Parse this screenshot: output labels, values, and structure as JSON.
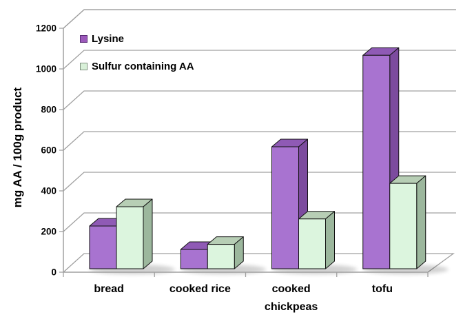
{
  "chart_data": {
    "type": "bar",
    "variant": "3d-clustered",
    "title": "",
    "xlabel": "",
    "ylabel": "mg AA / 100g product",
    "categories": [
      "bread",
      "cooked rice",
      "cooked chickpeas",
      "tofu"
    ],
    "series": [
      {
        "name": "Lysine",
        "values": [
          210,
          95,
          600,
          1050
        ],
        "color_front": "#a873d0",
        "color_top": "#8f5ab5",
        "color_side": "#7c4b9e",
        "legend_swatch": "#9c59bb"
      },
      {
        "name": "Sulfur containing AA",
        "values": [
          305,
          120,
          245,
          420
        ],
        "color_front": "#dcf5de",
        "color_top": "#b7ceb5",
        "color_side": "#9cb79d",
        "legend_swatch": "#d8f0d8"
      }
    ],
    "ylim": [
      0,
      1200
    ],
    "ytick_step": 200,
    "yticks": [
      0,
      200,
      400,
      600,
      800,
      1000,
      1200
    ],
    "grid": true,
    "legend_position": "top-left",
    "line_color": "#a0a0a0",
    "outline_color": "#111111",
    "text_color": "#000000",
    "background": "#ffffff"
  }
}
